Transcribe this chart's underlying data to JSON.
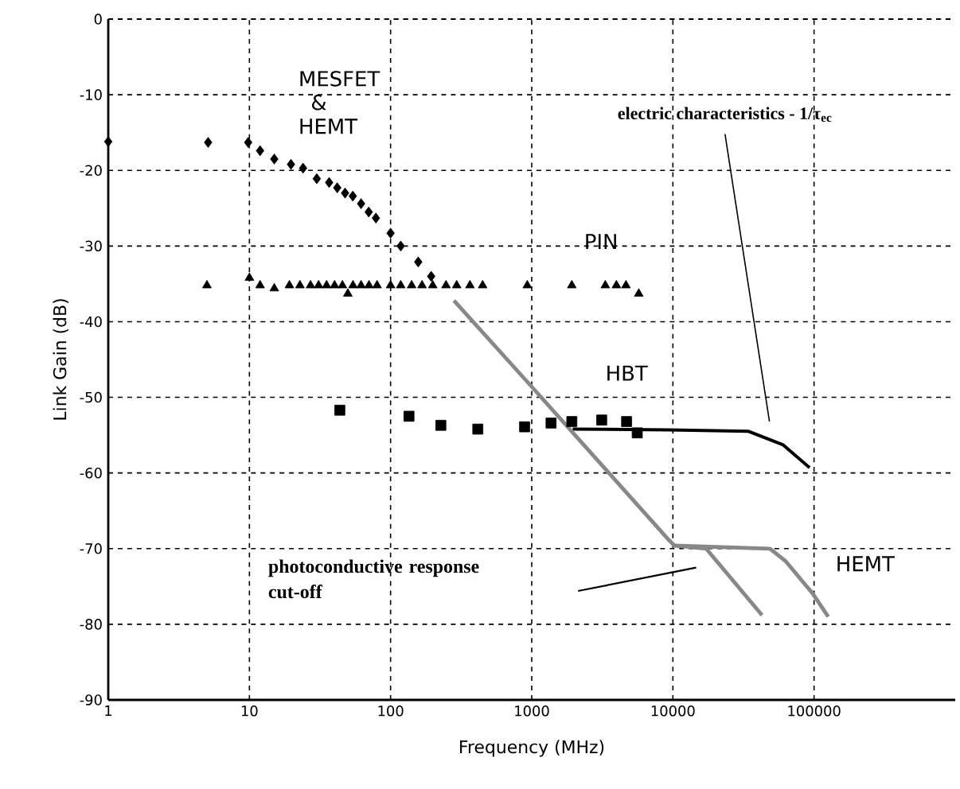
{
  "chart_data": {
    "type": "scatter",
    "xlabel": "Frequency (MHz)",
    "ylabel": "Link Gain (dB)",
    "log": "x",
    "xlim": [
      1,
      1000000
    ],
    "ylim": [
      -90,
      0
    ],
    "xticks": [
      1,
      10,
      100,
      1000,
      10000,
      100000
    ],
    "yticks": [
      0,
      -10,
      -20,
      -30,
      -40,
      -50,
      -60,
      -70,
      -80,
      -90
    ],
    "grid": true,
    "series": [
      {
        "marker": "diamond",
        "color": "#000000",
        "x": [
          1,
          5.1,
          9.8,
          11.9,
          15,
          19.7,
          24,
          30,
          36.7,
          41.9,
          47.6,
          54,
          61.8,
          70,
          78.7,
          100,
          118,
          157,
          194
        ],
        "values": [
          -16.2,
          -16.3,
          -16.3,
          -17.4,
          -18.5,
          -19.2,
          -19.7,
          -21.1,
          -21.6,
          -22.3,
          -23,
          -23.4,
          -24.4,
          -25.5,
          -26.3,
          -28.3,
          -30,
          -32.1,
          -34
        ]
      },
      {
        "marker": "triangle",
        "color": "#000000",
        "x": [
          5,
          10,
          11.9,
          15,
          19.2,
          22.8,
          27.1,
          30.9,
          35.2,
          40.1,
          45.6,
          49.8,
          54.2,
          61.8,
          70.3,
          80.2,
          100,
          118,
          141,
          167,
          199,
          247,
          294,
          365,
          449,
          930,
          1923,
          3320,
          3980,
          4650,
          5730
        ],
        "values": [
          -35.2,
          -34.2,
          -35.2,
          -35.6,
          -35.2,
          -35.2,
          -35.2,
          -35.2,
          -35.2,
          -35.2,
          -35.2,
          -36.3,
          -35.2,
          -35.2,
          -35.2,
          -35.2,
          -35.2,
          -35.2,
          -35.2,
          -35.2,
          -35.2,
          -35.2,
          -35.2,
          -35.2,
          -35.2,
          -35.2,
          -35.2,
          -35.2,
          -35.2,
          -35.2,
          -36.3
        ]
      },
      {
        "marker": "square",
        "color": "#000000",
        "x": [
          43.7,
          135,
          227,
          415,
          890,
          1370,
          1923,
          3130,
          4700,
          5590
        ],
        "values": [
          -51.7,
          -52.5,
          -53.7,
          -54.2,
          -53.9,
          -53.4,
          -53.2,
          -53,
          -53.2,
          -54.7
        ]
      },
      {
        "type": "line",
        "marker": "none",
        "line_style": "solid",
        "color": "#000000",
        "x": [
          1950,
          9400,
          34400,
          60500,
          93000
        ],
        "values": [
          -54.2,
          -54.3,
          -54.5,
          -56.3,
          -59.3
        ]
      },
      {
        "type": "line",
        "marker": "none",
        "line_style": "solid",
        "color": "#888888",
        "x": [
          281,
          1000,
          9400,
          10250,
          48700,
          63200,
          97500,
          126000
        ],
        "values": [
          -37.2,
          -48.6,
          -68.9,
          -69.6,
          -70,
          -71.7,
          -75.9,
          -79
        ]
      },
      {
        "type": "line",
        "marker": "none",
        "line_style": "solid",
        "color": "#888888",
        "x": [
          10250,
          17200,
          42800
        ],
        "values": [
          -69.6,
          -70,
          -78.8
        ]
      }
    ],
    "annotations": [
      "MESFET & HEMT",
      "PIN",
      "HBT",
      "HEMT",
      "electric characteristics - 1/τ$_{ec}$",
      "photoconductive response cut-off"
    ]
  }
}
